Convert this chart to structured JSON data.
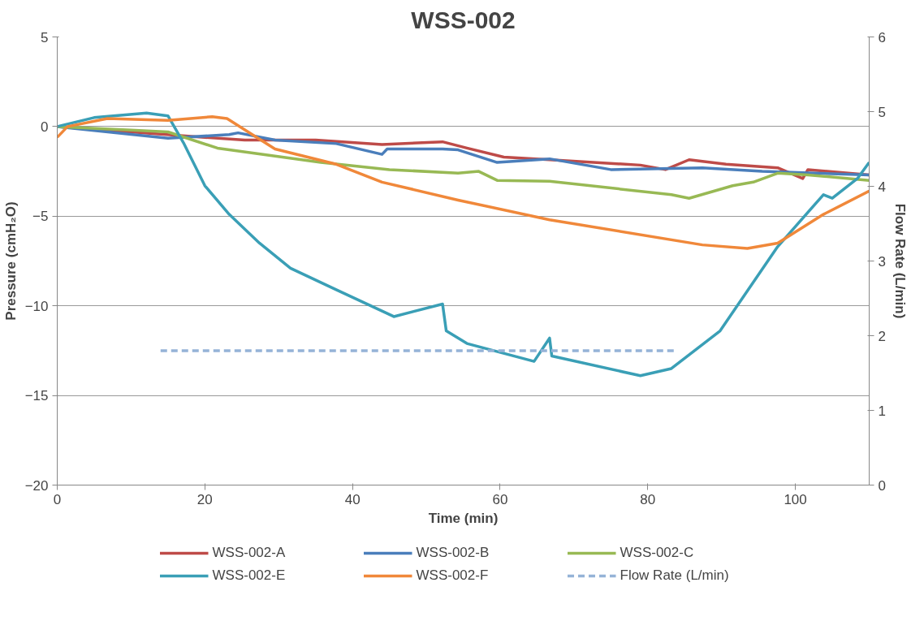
{
  "chart_data": {
    "type": "line",
    "title": "WSS-002",
    "xlabel": "Time (min)",
    "ylabel": "Pressure (cmH₂O)",
    "y2label": "Flow Rate (L/min)",
    "xlim": [
      0,
      110
    ],
    "xticks": [
      0,
      20,
      40,
      60,
      80,
      100
    ],
    "ylim": [
      -20,
      5
    ],
    "yticks": [
      -20,
      -15,
      -10,
      -5,
      0,
      5
    ],
    "y2lim": [
      0,
      6
    ],
    "y2ticks": [
      0,
      1,
      2,
      3,
      4,
      5,
      6
    ],
    "grid": "y",
    "legend": "bottom",
    "line_style": "solid",
    "series": [
      {
        "name": "WSS-002-A",
        "color": "#be4b48",
        "x": [
          0,
          10,
          20,
          25.4,
          35,
          44,
          52.2,
          55.5,
          60.5,
          66.7,
          79,
          82.4,
          85.6,
          90.6,
          97.6,
          101,
          101.7,
          110
        ],
        "values": [
          0,
          -0.3,
          -0.6,
          -0.75,
          -0.75,
          -1.0,
          -0.85,
          -1.2,
          -1.7,
          -1.85,
          -2.15,
          -2.4,
          -1.85,
          -2.1,
          -2.3,
          -2.9,
          -2.4,
          -2.7
        ]
      },
      {
        "name": "WSS-002-B",
        "color": "#4a7ebb",
        "x": [
          0,
          15,
          23.3,
          24.5,
          29.5,
          37.8,
          44,
          44.7,
          52.2,
          54.3,
          59.6,
          66.7,
          75,
          87.4,
          95.5,
          110
        ],
        "values": [
          0,
          -0.65,
          -0.45,
          -0.35,
          -0.75,
          -0.95,
          -1.55,
          -1.25,
          -1.25,
          -1.3,
          -2.0,
          -1.8,
          -2.4,
          -2.3,
          -2.5,
          -2.7
        ]
      },
      {
        "name": "WSS-002-C",
        "color": "#98b954",
        "x": [
          0,
          10,
          15,
          21.7,
          35.7,
          45,
          54.3,
          57.1,
          59.6,
          66.7,
          83.2,
          85.6,
          91.5,
          94.3,
          97.6,
          101.7,
          110
        ],
        "values": [
          0,
          -0.2,
          -0.3,
          -1.2,
          -2.0,
          -2.4,
          -2.6,
          -2.5,
          -3.0,
          -3.05,
          -3.8,
          -4.0,
          -3.3,
          -3.1,
          -2.6,
          -2.7,
          -3.0
        ]
      },
      {
        "name": "WSS-002-E",
        "color": "#3a9fb6",
        "x": [
          0,
          5,
          12.1,
          15,
          17.1,
          20,
          23.3,
          27.4,
          31.6,
          37.8,
          45.6,
          52.2,
          52.7,
          55.5,
          64.6,
          66.7,
          67,
          79,
          83.2,
          89.8,
          97.6,
          103.8,
          105,
          108.4,
          110
        ],
        "values": [
          0,
          0.5,
          0.75,
          0.6,
          -0.9,
          -3.3,
          -4.9,
          -6.5,
          -7.9,
          -9.1,
          -10.6,
          -9.9,
          -11.4,
          -12.1,
          -13.1,
          -11.8,
          -12.8,
          -13.9,
          -13.5,
          -11.4,
          -6.7,
          -3.8,
          -4.0,
          -2.9,
          -2.0
        ]
      },
      {
        "name": "WSS-002-F",
        "color": "#f0883a",
        "x": [
          0,
          1.4,
          6.8,
          15,
          21,
          23,
          29.5,
          37.8,
          44,
          54.3,
          66.7,
          87.4,
          93.5,
          97.6,
          103.8,
          110
        ],
        "values": [
          -0.6,
          0,
          0.45,
          0.35,
          0.55,
          0.45,
          -1.25,
          -2.1,
          -3.1,
          -4.1,
          -5.2,
          -6.6,
          -6.8,
          -6.5,
          -4.9,
          -3.6
        ]
      },
      {
        "name": "Flow Rate (L/min)",
        "color": "#95b3d7",
        "axis": "y2",
        "line_style": "dashed",
        "x": [
          14,
          84
        ],
        "values": [
          1.8,
          1.8
        ]
      }
    ]
  }
}
